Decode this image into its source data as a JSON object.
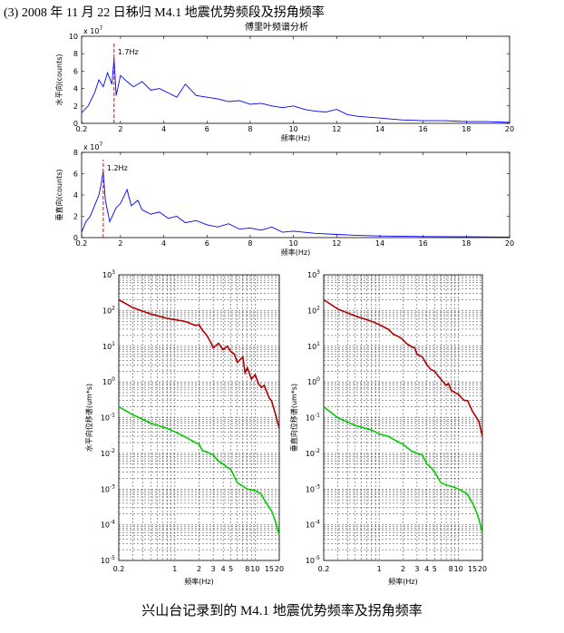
{
  "header": {
    "text": "(3) 2008 年 11 月 22 日秭归 M4.1 地震优势频段及拐角频率"
  },
  "caption": {
    "text": "兴山台记录到的 M4.1 地震优势频率及拐角频率"
  },
  "colors": {
    "spectrum": "#0000ff",
    "marker": "#ff0000",
    "red_curve": "#b00000",
    "green_curve": "#00cc00"
  },
  "chart_data": [
    {
      "type": "line",
      "title": "傅里叶频谱分析",
      "xlabel": "频率(Hz)",
      "ylabel": "水平向(counts)",
      "scale_label": "x 10^7",
      "xlim": [
        0.2,
        20
      ],
      "ylim": [
        0,
        10
      ],
      "xticks": [
        "0.2",
        "2",
        "4",
        "6",
        "8",
        "10",
        "12",
        "14",
        "16",
        "18",
        "20"
      ],
      "yticks": [
        "0",
        "2",
        "4",
        "6",
        "8",
        "10"
      ],
      "marker": {
        "x": 1.7,
        "label": "1.7Hz"
      },
      "series": [
        {
          "x": [
            0.2,
            0.5,
            0.8,
            1.0,
            1.2,
            1.4,
            1.6,
            1.7,
            1.8,
            2.0,
            2.3,
            2.6,
            3.0,
            3.4,
            3.8,
            4.2,
            4.6,
            5.0,
            5.5,
            6.0,
            6.5,
            7.0,
            7.5,
            8.0,
            8.5,
            9.0,
            9.5,
            10.0,
            10.5,
            11.0,
            11.5,
            12.0,
            12.5,
            13.0,
            14.0,
            15.0,
            16.0,
            17.0,
            18.0,
            19.0,
            20.0
          ],
          "y": [
            1.2,
            2.0,
            3.5,
            5.0,
            4.2,
            5.8,
            4.5,
            7.5,
            3.2,
            5.5,
            4.8,
            4.2,
            4.8,
            3.8,
            4.0,
            3.5,
            3.0,
            4.5,
            3.2,
            3.0,
            2.8,
            2.5,
            2.6,
            2.2,
            2.3,
            2.0,
            1.8,
            2.0,
            1.6,
            1.4,
            1.3,
            1.6,
            1.0,
            0.8,
            0.6,
            0.4,
            0.3,
            0.3,
            0.2,
            0.2,
            0.1
          ]
        }
      ]
    },
    {
      "type": "line",
      "xlabel": "频率(Hz)",
      "ylabel": "垂直向(counts)",
      "scale_label": "x 10^7",
      "xlim": [
        0.2,
        20
      ],
      "ylim": [
        0,
        8
      ],
      "xticks": [
        "0.2",
        "2",
        "4",
        "6",
        "8",
        "10",
        "12",
        "14",
        "16",
        "18",
        "20"
      ],
      "yticks": [
        "0",
        "2",
        "4",
        "6",
        "8"
      ],
      "marker": {
        "x": 1.2,
        "label": "1.2Hz"
      },
      "series": [
        {
          "x": [
            0.2,
            0.4,
            0.6,
            0.8,
            1.0,
            1.1,
            1.2,
            1.3,
            1.5,
            1.8,
            2.0,
            2.3,
            2.5,
            2.8,
            3.0,
            3.4,
            3.8,
            4.2,
            4.6,
            5.0,
            5.5,
            6.0,
            6.5,
            7.0,
            7.5,
            8.0,
            8.5,
            9.0,
            9.5,
            10.0,
            11.0,
            12.0,
            13.0,
            14.0,
            16.0,
            18.0,
            20.0
          ],
          "y": [
            0.5,
            1.5,
            2.0,
            3.0,
            4.0,
            5.0,
            6.2,
            3.5,
            1.5,
            2.8,
            3.2,
            4.5,
            3.0,
            3.5,
            2.6,
            2.2,
            2.4,
            1.8,
            2.0,
            1.4,
            1.6,
            1.2,
            1.0,
            1.3,
            0.8,
            0.9,
            0.7,
            1.0,
            0.5,
            0.6,
            0.4,
            0.3,
            0.2,
            0.15,
            0.1,
            0.08,
            0.05
          ]
        }
      ]
    },
    {
      "type": "line",
      "xlabel": "频率(Hz)",
      "ylabel": "水平向位移谱(um*s)",
      "log_scale": true,
      "xlim": [
        0.2,
        20
      ],
      "ylim": [
        1e-05,
        1000
      ],
      "xticks": [
        "0.2",
        "1",
        "2",
        "3",
        "4",
        "5",
        "8",
        "10",
        "15",
        "20"
      ],
      "yticks": [
        "10^-5",
        "10^-4",
        "10^-3",
        "10^-2",
        "10^-1",
        "10^0",
        "10^1",
        "10^2",
        "10^3"
      ],
      "series": [
        {
          "x": [
            0.2,
            0.3,
            0.5,
            0.8,
            1.0,
            1.3,
            1.5,
            1.8,
            2.0,
            2.2,
            2.5,
            2.8,
            3.0,
            3.5,
            4.0,
            4.5,
            5.0,
            5.5,
            6.0,
            7.0,
            7.5,
            8.0,
            9.0,
            10.0,
            11.0,
            12.0,
            13.0,
            15.0,
            16.0,
            18.0,
            20.0
          ],
          "y": [
            200,
            120,
            80,
            60,
            55,
            50,
            45,
            38,
            40,
            28,
            20,
            13,
            9,
            12,
            8,
            10,
            7,
            6,
            3.5,
            5,
            1.8,
            2.5,
            1.2,
            1.6,
            0.9,
            0.7,
            0.8,
            0.35,
            0.3,
            0.12,
            0.05
          ]
        },
        {
          "x": [
            0.2,
            0.3,
            0.5,
            0.8,
            1.0,
            1.3,
            1.5,
            1.8,
            2.0,
            2.2,
            2.5,
            3.0,
            3.5,
            4.0,
            4.5,
            5.0,
            6.0,
            7.0,
            8.0,
            9.0,
            10.0,
            11.0,
            12.0,
            13.0,
            15.0,
            16.0,
            18.0,
            20.0
          ],
          "y": [
            0.2,
            0.12,
            0.07,
            0.05,
            0.04,
            0.03,
            0.025,
            0.02,
            0.018,
            0.012,
            0.011,
            0.009,
            0.006,
            0.005,
            0.004,
            0.0035,
            0.0015,
            0.0012,
            0.001,
            0.00095,
            0.0009,
            0.0008,
            0.0007,
            0.0005,
            0.0003,
            0.00025,
            0.00012,
            5e-05
          ]
        }
      ]
    },
    {
      "type": "line",
      "xlabel": "频率(Hz)",
      "ylabel": "垂直向位移谱(um*s)",
      "log_scale": true,
      "xlim": [
        0.2,
        20
      ],
      "ylim": [
        1e-05,
        1000
      ],
      "xticks": [
        "0.2",
        "1",
        "2",
        "3",
        "4",
        "5",
        "8",
        "10",
        "15",
        "20"
      ],
      "yticks": [
        "10^-5",
        "10^-4",
        "10^-3",
        "10^-2",
        "10^-1",
        "10^0",
        "10^1",
        "10^2",
        "10^3"
      ],
      "series": [
        {
          "x": [
            0.2,
            0.3,
            0.5,
            0.8,
            1.0,
            1.3,
            1.5,
            1.8,
            2.0,
            2.2,
            2.5,
            2.8,
            3.0,
            3.5,
            4.0,
            4.5,
            5.0,
            5.5,
            6.0,
            7.0,
            7.5,
            8.0,
            9.0,
            10.0,
            11.0,
            12.0,
            13.0,
            15.0,
            16.0,
            18.0,
            20.0
          ],
          "y": [
            200,
            110,
            70,
            50,
            40,
            30,
            22,
            18,
            15,
            12,
            10,
            9,
            6,
            5,
            3,
            2.2,
            2,
            1.5,
            1.2,
            0.8,
            0.9,
            0.6,
            0.5,
            0.45,
            0.35,
            0.3,
            0.3,
            0.15,
            0.12,
            0.08,
            0.03
          ]
        },
        {
          "x": [
            0.2,
            0.3,
            0.5,
            0.8,
            1.0,
            1.3,
            1.5,
            1.8,
            2.0,
            2.2,
            2.5,
            3.0,
            3.5,
            4.0,
            4.5,
            5.0,
            6.0,
            7.0,
            8.0,
            9.0,
            10.0,
            11.0,
            12.0,
            13.0,
            15.0,
            16.0,
            18.0,
            20.0
          ],
          "y": [
            0.2,
            0.1,
            0.06,
            0.045,
            0.035,
            0.03,
            0.025,
            0.02,
            0.018,
            0.015,
            0.012,
            0.01,
            0.009,
            0.005,
            0.004,
            0.003,
            0.0015,
            0.0013,
            0.0012,
            0.0011,
            0.001,
            0.0009,
            0.0008,
            0.0007,
            0.0004,
            0.0003,
            0.00015,
            6e-05
          ]
        }
      ]
    }
  ]
}
